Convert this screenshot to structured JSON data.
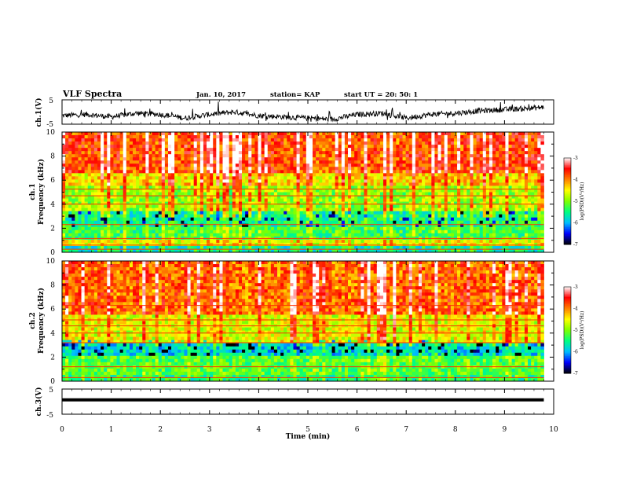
{
  "header": {
    "title": "VLF Spectra",
    "date": "Jan. 10, 2017",
    "station": "station= KAP",
    "start": "start UT = 20: 50: 1"
  },
  "chart_data": [
    {
      "type": "line",
      "name": "ch.1 waveform",
      "ylabel": "ch.1(V)",
      "ylim": [
        -5,
        5
      ],
      "yticks": [
        "5",
        "-5"
      ],
      "xlim": [
        0,
        10
      ],
      "x": [
        0,
        0.5,
        1,
        1.5,
        2,
        2.5,
        3,
        3.5,
        4,
        4.5,
        5,
        5.5,
        6,
        6.5,
        7,
        7.5,
        8,
        8.5,
        9,
        9.5,
        9.8
      ],
      "y": [
        -1.5,
        -1,
        -2,
        -0.5,
        -1,
        -2.5,
        -1,
        0,
        -1.5,
        -2,
        -2.5,
        -3,
        -1,
        -0.5,
        -2.5,
        -1,
        -0.5,
        0.5,
        1,
        1.5,
        2
      ]
    },
    {
      "type": "heatmap",
      "name": "ch.1 spectrogram",
      "ylabel_top": "ch.1",
      "ylabel": "Frequency (kHz)",
      "ylim": [
        0,
        10
      ],
      "yticks": [
        "0",
        "2",
        "4",
        "6",
        "8",
        "10"
      ],
      "xlim": [
        0,
        9.8
      ],
      "colorbar": {
        "label": "log(PSD)(V²/Hz)",
        "range": [
          -7,
          -3
        ],
        "ticks": [
          "-3",
          "-4",
          "-5",
          "-6",
          "-7"
        ]
      },
      "band_levels_by_frequency": [
        {
          "f_khz": [
            0,
            0.5
          ],
          "level": -5.6
        },
        {
          "f_khz": [
            0.5,
            1
          ],
          "level": -4.6
        },
        {
          "f_khz": [
            1,
            2
          ],
          "level": -5.3
        },
        {
          "f_khz": [
            2,
            3.5
          ],
          "level": -5.5
        },
        {
          "f_khz": [
            3.5,
            5.5
          ],
          "level": -4.9
        },
        {
          "f_khz": [
            5.5,
            6.5
          ],
          "level": -4.4
        },
        {
          "f_khz": [
            6.5,
            10
          ],
          "level": -3.8
        }
      ],
      "line_frequencies_khz": [
        0.25,
        0.6,
        1.15,
        2.3,
        4.0,
        4.7,
        5.25
      ]
    },
    {
      "type": "heatmap",
      "name": "ch.2 spectrogram",
      "ylabel_top": "ch.2",
      "ylabel": "Frequency (kHz)",
      "ylim": [
        0,
        10
      ],
      "yticks": [
        "0",
        "2",
        "4",
        "6",
        "8",
        "10"
      ],
      "xlim": [
        0,
        9.8
      ],
      "colorbar": {
        "label": "log(PSD)(V²/Hz)",
        "range": [
          -7,
          -3
        ],
        "ticks": [
          "-3",
          "-4",
          "-5",
          "-6",
          "-7"
        ]
      },
      "band_levels_by_frequency": [
        {
          "f_khz": [
            0,
            0.5
          ],
          "level": -5.4
        },
        {
          "f_khz": [
            0.5,
            2
          ],
          "level": -5.2
        },
        {
          "f_khz": [
            2,
            3.2
          ],
          "level": -5.8
        },
        {
          "f_khz": [
            3.2,
            5.5
          ],
          "level": -4.6
        },
        {
          "f_khz": [
            5.5,
            10
          ],
          "level": -3.9
        }
      ],
      "line_frequencies_khz": [
        0.3,
        1.2,
        3.2,
        4.0,
        4.6,
        5.1,
        6.3
      ]
    },
    {
      "type": "line",
      "name": "ch.3 waveform",
      "ylabel": "ch.3(V)",
      "ylim": [
        -5,
        5
      ],
      "yticks": [
        "5",
        "-5"
      ],
      "xlim": [
        0,
        10
      ],
      "x": [
        0,
        9.8
      ],
      "y": [
        0.7,
        0.7
      ]
    }
  ],
  "xaxis": {
    "label": "Time (min)",
    "ticks": [
      "0",
      "1",
      "2",
      "3",
      "4",
      "5",
      "6",
      "7",
      "8",
      "9",
      "10"
    ]
  },
  "colors": {
    "colormap": [
      "#000000",
      "#0000ff",
      "#00bfff",
      "#00ff80",
      "#7fff00",
      "#ffff00",
      "#ff8000",
      "#ff0000",
      "#ffffff"
    ]
  }
}
